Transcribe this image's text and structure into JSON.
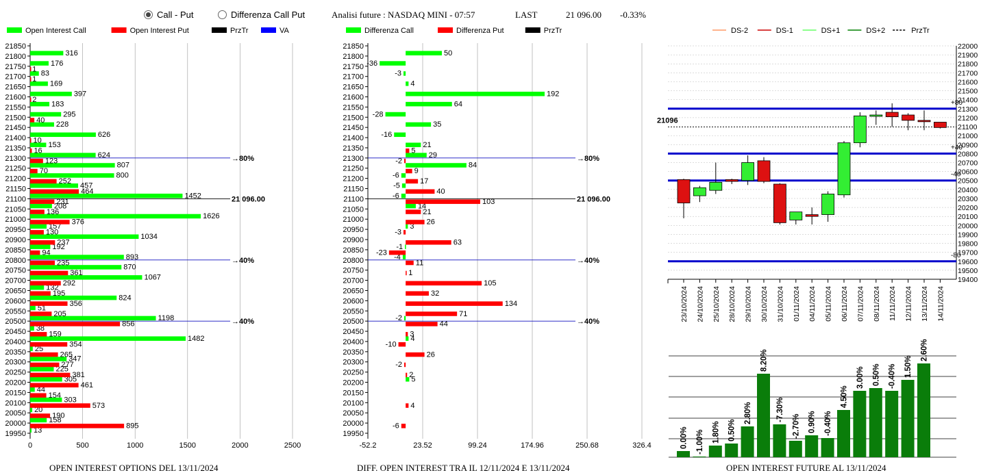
{
  "header": {
    "radio_call_put": "Call - Put",
    "radio_diff": "Differenza Call Put",
    "title": "Analisi future : NASDAQ MINI - 07:57",
    "last_label": "LAST",
    "last_value": "21 096.00",
    "last_change": "-0.33%"
  },
  "colors": {
    "green": "#00ff00",
    "red": "#ff0000",
    "black": "#000000",
    "blue": "#0000ff",
    "darkgreen": "#008000",
    "orange": "#ff9966",
    "lightgreen": "#66ff66"
  },
  "footers": {
    "left": "OPEN INTEREST OPTIONS DEL 13/11/2024",
    "middle": "DIFF. OPEN INTEREST TRA IL 12/11/2024 E 13/11/2024",
    "right": "OPEN INTEREST FUTURE AL 13/11/2024"
  },
  "chart_data": [
    {
      "type": "bar",
      "orientation": "horizontal",
      "legend": [
        "Open Interest Call",
        "Open Interest Put",
        "PrzTr",
        "VA"
      ],
      "strikes": [
        "21850",
        "21800",
        "21750",
        "21700",
        "21650",
        "21600",
        "21550",
        "21500",
        "21450",
        "21400",
        "21350",
        "21300",
        "21250",
        "21200",
        "21150",
        "21100",
        "21050",
        "21000",
        "20950",
        "20900",
        "20850",
        "20800",
        "20750",
        "20700",
        "20650",
        "20600",
        "20550",
        "20500",
        "20450",
        "20400",
        "20350",
        "20300",
        "20250",
        "20200",
        "20150",
        "20100",
        "20050",
        "20000",
        "19950"
      ],
      "series": [
        {
          "name": "Open Interest Call",
          "values": [
            null,
            316,
            176,
            83,
            169,
            397,
            183,
            295,
            228,
            626,
            153,
            624,
            807,
            800,
            457,
            1452,
            208,
            1626,
            157,
            1034,
            192,
            893,
            870,
            1067,
            132,
            824,
            51,
            1198,
            38,
            1482,
            25,
            347,
            225,
            305,
            44,
            303,
            20,
            158,
            13
          ]
        },
        {
          "name": "Open Interest Put",
          "values": [
            null,
            null,
            1,
            1,
            null,
            2,
            null,
            40,
            null,
            10,
            16,
            123,
            70,
            252,
            464,
            231,
            136,
            376,
            130,
            237,
            94,
            235,
            361,
            292,
            195,
            356,
            205,
            856,
            159,
            354,
            265,
            277,
            381,
            461,
            154,
            573,
            190,
            895,
            null
          ]
        }
      ],
      "xticks": [
        "0",
        "500",
        "1000",
        "1500",
        "2000",
        "2500"
      ],
      "xlim": [
        0,
        2500
      ],
      "lines": [
        {
          "strike": "21300",
          "label": "80%",
          "color": "blue"
        },
        {
          "strike": "21100",
          "label": "21 096.00",
          "color": "black"
        },
        {
          "strike": "20800",
          "label": "40%",
          "color": "blue"
        },
        {
          "strike": "20500",
          "label": "40%",
          "color": "blue"
        }
      ]
    },
    {
      "type": "bar",
      "orientation": "horizontal",
      "legend": [
        "Differenza Call",
        "Differenza Put",
        "PrzTr"
      ],
      "strikes": [
        "21850",
        "21800",
        "21750",
        "21700",
        "21650",
        "21600",
        "21550",
        "21500",
        "21450",
        "21400",
        "21350",
        "21300",
        "21250",
        "21200",
        "21150",
        "21100",
        "21050",
        "21000",
        "20950",
        "20900",
        "20850",
        "20800",
        "20750",
        "20700",
        "20650",
        "20600",
        "20550",
        "20500",
        "20450",
        "20400",
        "20350",
        "20300",
        "20250",
        "20200",
        "20150",
        "20100",
        "20050",
        "20000",
        "19950"
      ],
      "series": [
        {
          "name": "Differenza Call",
          "values": [
            null,
            50,
            -36,
            -3,
            4,
            192,
            64,
            -28,
            35,
            -16,
            21,
            29,
            84,
            -6,
            -5,
            -6,
            14,
            null,
            3,
            null,
            -1,
            -4,
            null,
            null,
            null,
            null,
            null,
            -2,
            null,
            4,
            null,
            null,
            null,
            5,
            null,
            null,
            null,
            null,
            null
          ]
        },
        {
          "name": "Differenza Put",
          "values": [
            null,
            null,
            null,
            null,
            null,
            null,
            null,
            null,
            null,
            null,
            5,
            -2,
            9,
            17,
            40,
            103,
            21,
            26,
            -3,
            63,
            -23,
            11,
            1,
            105,
            32,
            134,
            71,
            44,
            3,
            -10,
            26,
            -2,
            2,
            null,
            null,
            4,
            null,
            -6,
            null
          ]
        }
      ],
      "xticks": [
        "-52.2",
        "23.52",
        "99.24",
        "174.96",
        "250.68",
        "326.4"
      ],
      "xlim": [
        -52.2,
        326.4
      ],
      "lines": [
        {
          "strike": "21300",
          "label": "80%",
          "color": "blue"
        },
        {
          "strike": "21100",
          "label": "21 096.00",
          "color": "black"
        },
        {
          "strike": "20800",
          "label": "40%",
          "color": "blue"
        },
        {
          "strike": "20500",
          "label": "40%",
          "color": "blue"
        }
      ]
    },
    {
      "type": "candlestick",
      "legend": [
        "DS-2",
        "DS-1",
        "DS+1",
        "DS+2",
        "PrzTr"
      ],
      "dates": [
        "23/10/2024",
        "24/10/2024",
        "25/10/2024",
        "28/10/2024",
        "29/10/2024",
        "30/10/2024",
        "31/10/2024",
        "01/11/2024",
        "04/11/2024",
        "05/11/2024",
        "06/11/2024",
        "07/11/2024",
        "08/11/2024",
        "11/11/2024",
        "12/11/2024",
        "13/11/2024",
        "14/11/2024"
      ],
      "candles": [
        {
          "o": 20510,
          "h": 20520,
          "l": 20080,
          "c": 20250
        },
        {
          "o": 20330,
          "h": 20440,
          "l": 20260,
          "c": 20420
        },
        {
          "o": 20390,
          "h": 20700,
          "l": 20350,
          "c": 20480
        },
        {
          "o": 20510,
          "h": 20520,
          "l": 20460,
          "c": 20490
        },
        {
          "o": 20500,
          "h": 20780,
          "l": 20450,
          "c": 20700
        },
        {
          "o": 20720,
          "h": 20760,
          "l": 20470,
          "c": 20490
        },
        {
          "o": 20460,
          "h": 20470,
          "l": 20010,
          "c": 20030
        },
        {
          "o": 20060,
          "h": 20150,
          "l": 20010,
          "c": 20150
        },
        {
          "o": 20120,
          "h": 20200,
          "l": 20010,
          "c": 20100
        },
        {
          "o": 20120,
          "h": 20380,
          "l": 20040,
          "c": 20350
        },
        {
          "o": 20340,
          "h": 20940,
          "l": 20310,
          "c": 20920
        },
        {
          "o": 20920,
          "h": 21260,
          "l": 20870,
          "c": 21220
        },
        {
          "o": 21220,
          "h": 21280,
          "l": 21120,
          "c": 21230
        },
        {
          "o": 21260,
          "h": 21360,
          "l": 21100,
          "c": 21210
        },
        {
          "o": 21230,
          "h": 21250,
          "l": 21060,
          "c": 21170
        },
        {
          "o": 21170,
          "h": 21280,
          "l": 21060,
          "c": 21160
        },
        {
          "o": 21150,
          "h": 21150,
          "l": 21080,
          "c": 21090
        }
      ],
      "yticks": [
        "22000",
        "21900",
        "21800",
        "21700",
        "21600",
        "21500",
        "21400",
        "21300",
        "21200",
        "21100",
        "21000",
        "20900",
        "20800",
        "20700",
        "20600",
        "20500",
        "20400",
        "20300",
        "20200",
        "20100",
        "20000",
        "19900",
        "19800",
        "19700",
        "19600",
        "19500",
        "19400"
      ],
      "ylim": [
        19400,
        22000
      ],
      "levels": [
        {
          "y": 21300,
          "label": "+80"
        },
        {
          "y": 20800,
          "label": "+40"
        },
        {
          "y": 20500,
          "label": "-40"
        },
        {
          "y": 19600,
          "label": "-80"
        }
      ],
      "price_label": "21096",
      "price": 21096
    },
    {
      "type": "bar",
      "labels": [
        "0.00%",
        "-1.00%",
        "1.80%",
        "0.50%",
        "2.80%",
        "8.20%",
        "-7.30%",
        "-2.70%",
        "0.90%",
        "-0.40%",
        "4.50%",
        "3.00%",
        "0.50%",
        "-0.40%",
        "1.50%",
        "2.60%"
      ],
      "values": [
        9,
        1,
        17,
        20,
        45,
        122,
        48,
        24,
        32,
        28,
        69,
        97,
        101,
        97,
        113,
        137
      ]
    }
  ]
}
